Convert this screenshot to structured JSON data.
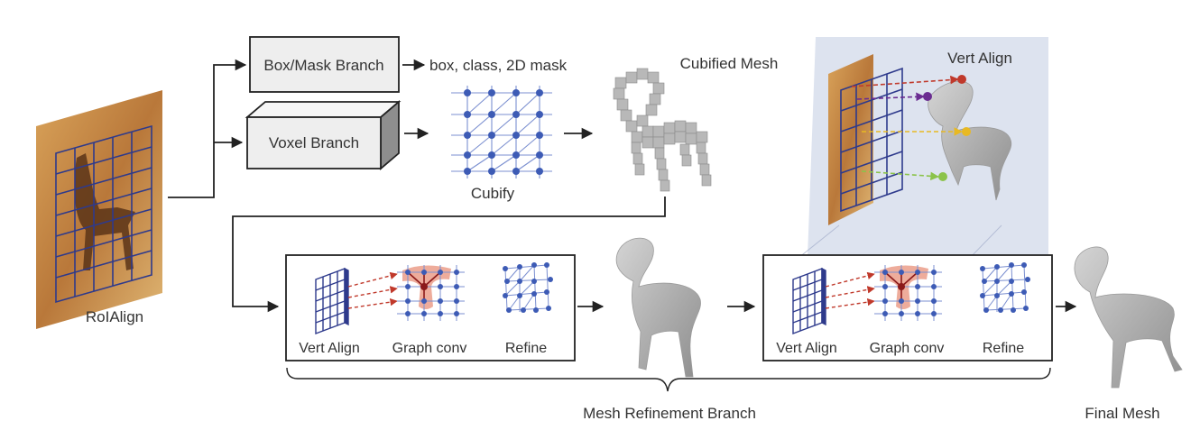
{
  "roi_label": "RoIAlign",
  "box_mask_branch": "Box/Mask Branch",
  "box_mask_output": "box, class, 2D mask",
  "voxel_branch": "Voxel Branch",
  "cubify_label": "Cubify",
  "cubified_mesh_label": "Cubified Mesh",
  "vert_align_title": "Vert Align",
  "stage_labels": [
    "Vert Align",
    "Graph conv",
    "Refine"
  ],
  "mesh_refinement_label": "Mesh Refinement Branch",
  "final_mesh_label": "Final Mesh",
  "colors": {
    "grid": "#2e3a8c",
    "node": "#3d5bb5",
    "edge": "#7b8fd0",
    "arrow_red": "#c0392b",
    "highlight": "#e8907a",
    "panel_bg": "#dde3ef",
    "box_fill": "#eeeeee"
  }
}
